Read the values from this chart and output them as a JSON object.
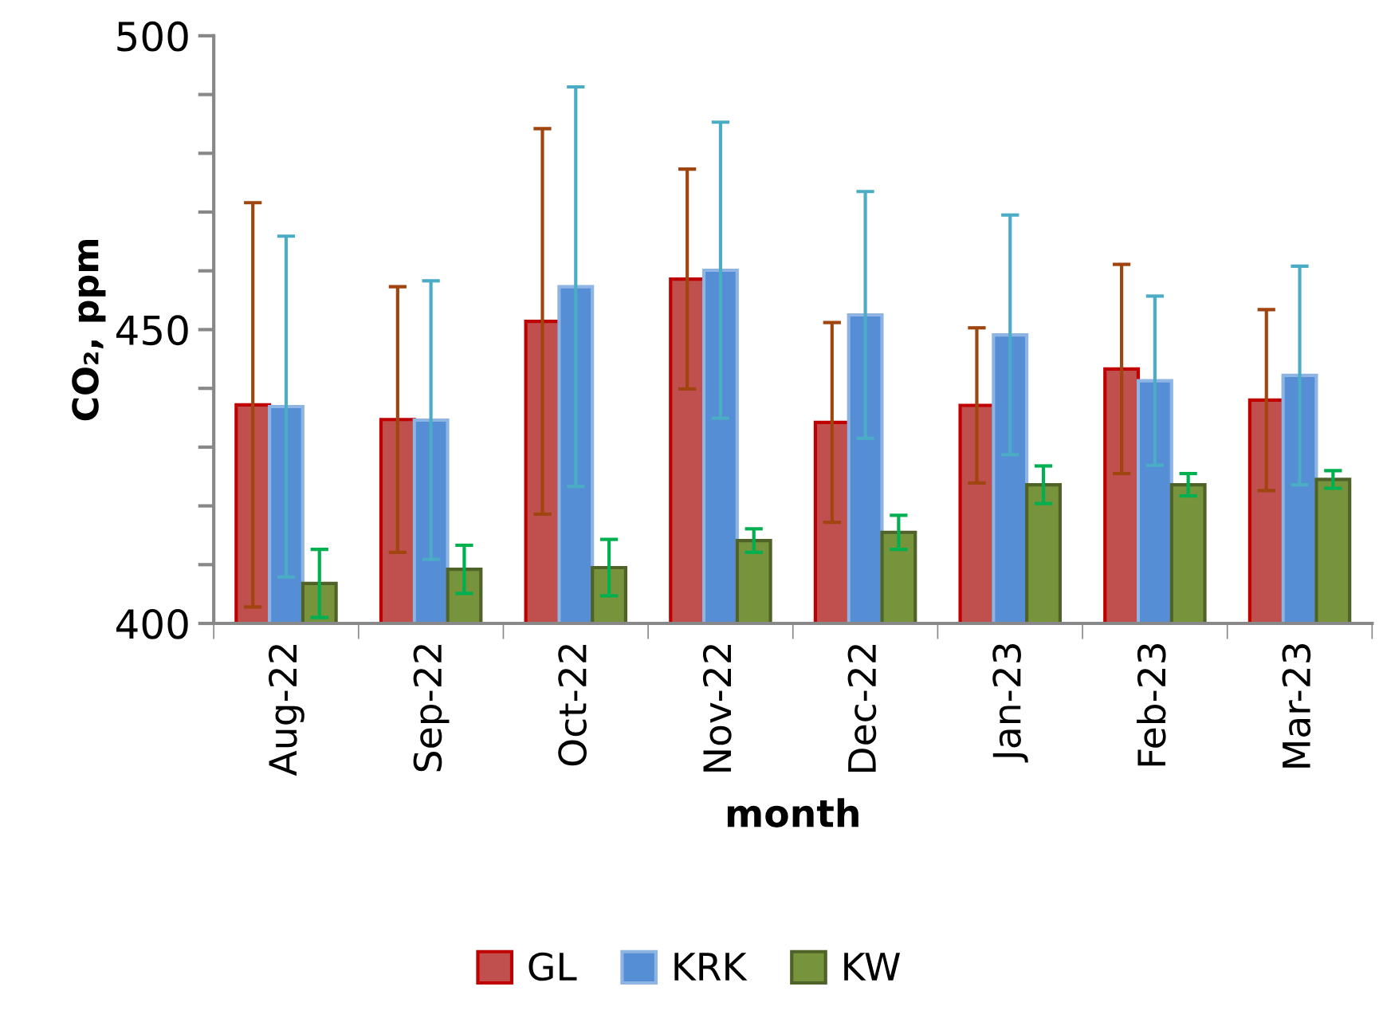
{
  "chart_data": {
    "type": "bar",
    "xlabel": "month",
    "ylabel": "CO₂, ppm",
    "categories": [
      "Aug-22",
      "Sep-22",
      "Oct-22",
      "Nov-22",
      "Dec-22",
      "Jan-23",
      "Feb-23",
      "Mar-23"
    ],
    "series": [
      {
        "name": "GL",
        "color": "#c0504d",
        "values": [
          437.2,
          434.7,
          451.4,
          458.6,
          434.2,
          437.1,
          443.3,
          438.0
        ],
        "errors": [
          34.4,
          22.6,
          32.8,
          18.7,
          17.0,
          13.2,
          17.8,
          15.4
        ]
      },
      {
        "name": "KRK",
        "color": "#558ed5",
        "values": [
          436.9,
          434.6,
          457.3,
          460.1,
          452.5,
          449.1,
          441.3,
          442.2
        ],
        "errors": [
          29.0,
          23.7,
          34.0,
          25.2,
          21.0,
          20.4,
          14.4,
          18.6
        ]
      },
      {
        "name": "KW",
        "color": "#77933c",
        "values": [
          406.8,
          409.2,
          409.5,
          414.1,
          415.5,
          423.6,
          423.6,
          424.5
        ],
        "errors": [
          5.8,
          4.1,
          4.8,
          2.0,
          2.9,
          3.2,
          1.9,
          1.5
        ]
      }
    ],
    "ylim": [
      400,
      500
    ],
    "yticks": [
      400,
      {
        "value": 410,
        "label": null
      },
      {
        "value": 420,
        "label": null
      },
      {
        "value": 430,
        "label": null
      },
      {
        "value": 440,
        "label": null
      },
      450,
      {
        "value": 460,
        "label": null
      },
      {
        "value": 470,
        "label": null
      },
      {
        "value": 480,
        "label": null
      },
      {
        "value": 490,
        "label": null
      },
      500
    ],
    "grid": false,
    "legend": "bottom"
  }
}
